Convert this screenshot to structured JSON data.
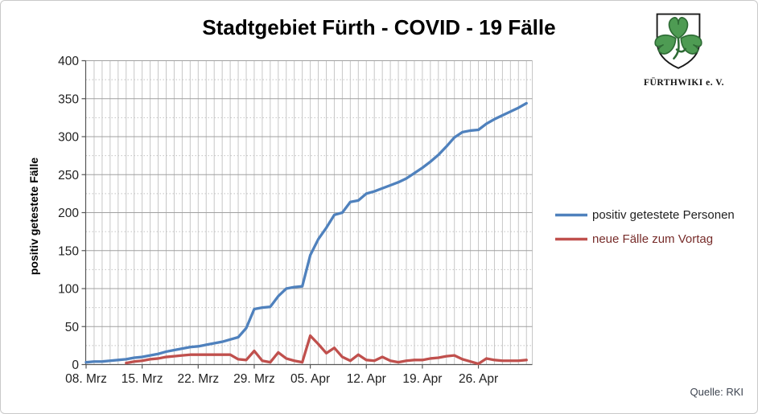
{
  "title": "Stadtgebiet Fürth - COVID - 19 Fälle",
  "source_note": "Quelle: RKI",
  "logo": {
    "caption": "FÜRTHWIKI e. V.",
    "shield_fill": "#ffffff",
    "shield_stroke": "#1a1a1a",
    "clover_fill": "#4e9b53",
    "clover_stroke": "#2e6b35"
  },
  "legend": [
    {
      "label": "positiv getestete Personen",
      "color": "#4F81BD",
      "text_color": "#1f1f1f"
    },
    {
      "label": "neue Fälle zum Vortag",
      "color": "#C0504D",
      "text_color": "#772c2a"
    }
  ],
  "chart_data": {
    "type": "line",
    "title": "Stadtgebiet Fürth - COVID - 19 Fälle",
    "xlabel": "",
    "ylabel": "positiv getestete Fälle",
    "ylim": [
      0,
      400
    ],
    "y_major_ticks": [
      0,
      50,
      100,
      150,
      200,
      250,
      300,
      350,
      400
    ],
    "y_minor_interval": 25,
    "grid": "daily vertical lines, major horizontal solid, minor horizontal dotted",
    "legend_position": "right",
    "x_tick_labels": [
      "08. Mrz",
      "15. Mrz",
      "22. Mrz",
      "29. Mrz",
      "05. Apr",
      "12. Apr",
      "19. Apr",
      "26. Apr"
    ],
    "x_tick_indices": [
      0,
      7,
      14,
      21,
      28,
      35,
      42,
      49
    ],
    "x": [
      "2020-03-08",
      "2020-03-09",
      "2020-03-10",
      "2020-03-11",
      "2020-03-12",
      "2020-03-13",
      "2020-03-14",
      "2020-03-15",
      "2020-03-16",
      "2020-03-17",
      "2020-03-18",
      "2020-03-19",
      "2020-03-20",
      "2020-03-21",
      "2020-03-22",
      "2020-03-23",
      "2020-03-24",
      "2020-03-25",
      "2020-03-26",
      "2020-03-27",
      "2020-03-28",
      "2020-03-29",
      "2020-03-30",
      "2020-03-31",
      "2020-04-01",
      "2020-04-02",
      "2020-04-03",
      "2020-04-04",
      "2020-04-05",
      "2020-04-06",
      "2020-04-07",
      "2020-04-08",
      "2020-04-09",
      "2020-04-10",
      "2020-04-11",
      "2020-04-12",
      "2020-04-13",
      "2020-04-14",
      "2020-04-15",
      "2020-04-16",
      "2020-04-17",
      "2020-04-18",
      "2020-04-19",
      "2020-04-20",
      "2020-04-21",
      "2020-04-22",
      "2020-04-23",
      "2020-04-24",
      "2020-04-25",
      "2020-04-26",
      "2020-04-27",
      "2020-04-28",
      "2020-04-29",
      "2020-04-30",
      "2020-05-01",
      "2020-05-02"
    ],
    "series": [
      {
        "name": "positiv getestete Personen",
        "color": "#4F81BD",
        "values": [
          3,
          4,
          4,
          5,
          6,
          7,
          9,
          10,
          12,
          14,
          17,
          19,
          21,
          23,
          24,
          26,
          28,
          30,
          33,
          36,
          48,
          73,
          75,
          76,
          90,
          100,
          102,
          103,
          144,
          165,
          180,
          197,
          200,
          214,
          216,
          225,
          228,
          232,
          236,
          240,
          245,
          252,
          259,
          267,
          276,
          287,
          299,
          306,
          308,
          309,
          317,
          323,
          328,
          333,
          338,
          344
        ]
      },
      {
        "name": "neue Fälle zum Vortag",
        "color": "#C0504D",
        "values": [
          null,
          null,
          null,
          null,
          null,
          2,
          4,
          5,
          7,
          8,
          10,
          11,
          12,
          13,
          13,
          13,
          13,
          13,
          13,
          7,
          6,
          18,
          5,
          3,
          16,
          8,
          5,
          3,
          38,
          27,
          15,
          22,
          10,
          5,
          13,
          6,
          5,
          10,
          5,
          3,
          5,
          6,
          6,
          8,
          9,
          11,
          12,
          7,
          4,
          1,
          8,
          6,
          5,
          5,
          5,
          6
        ]
      }
    ]
  }
}
